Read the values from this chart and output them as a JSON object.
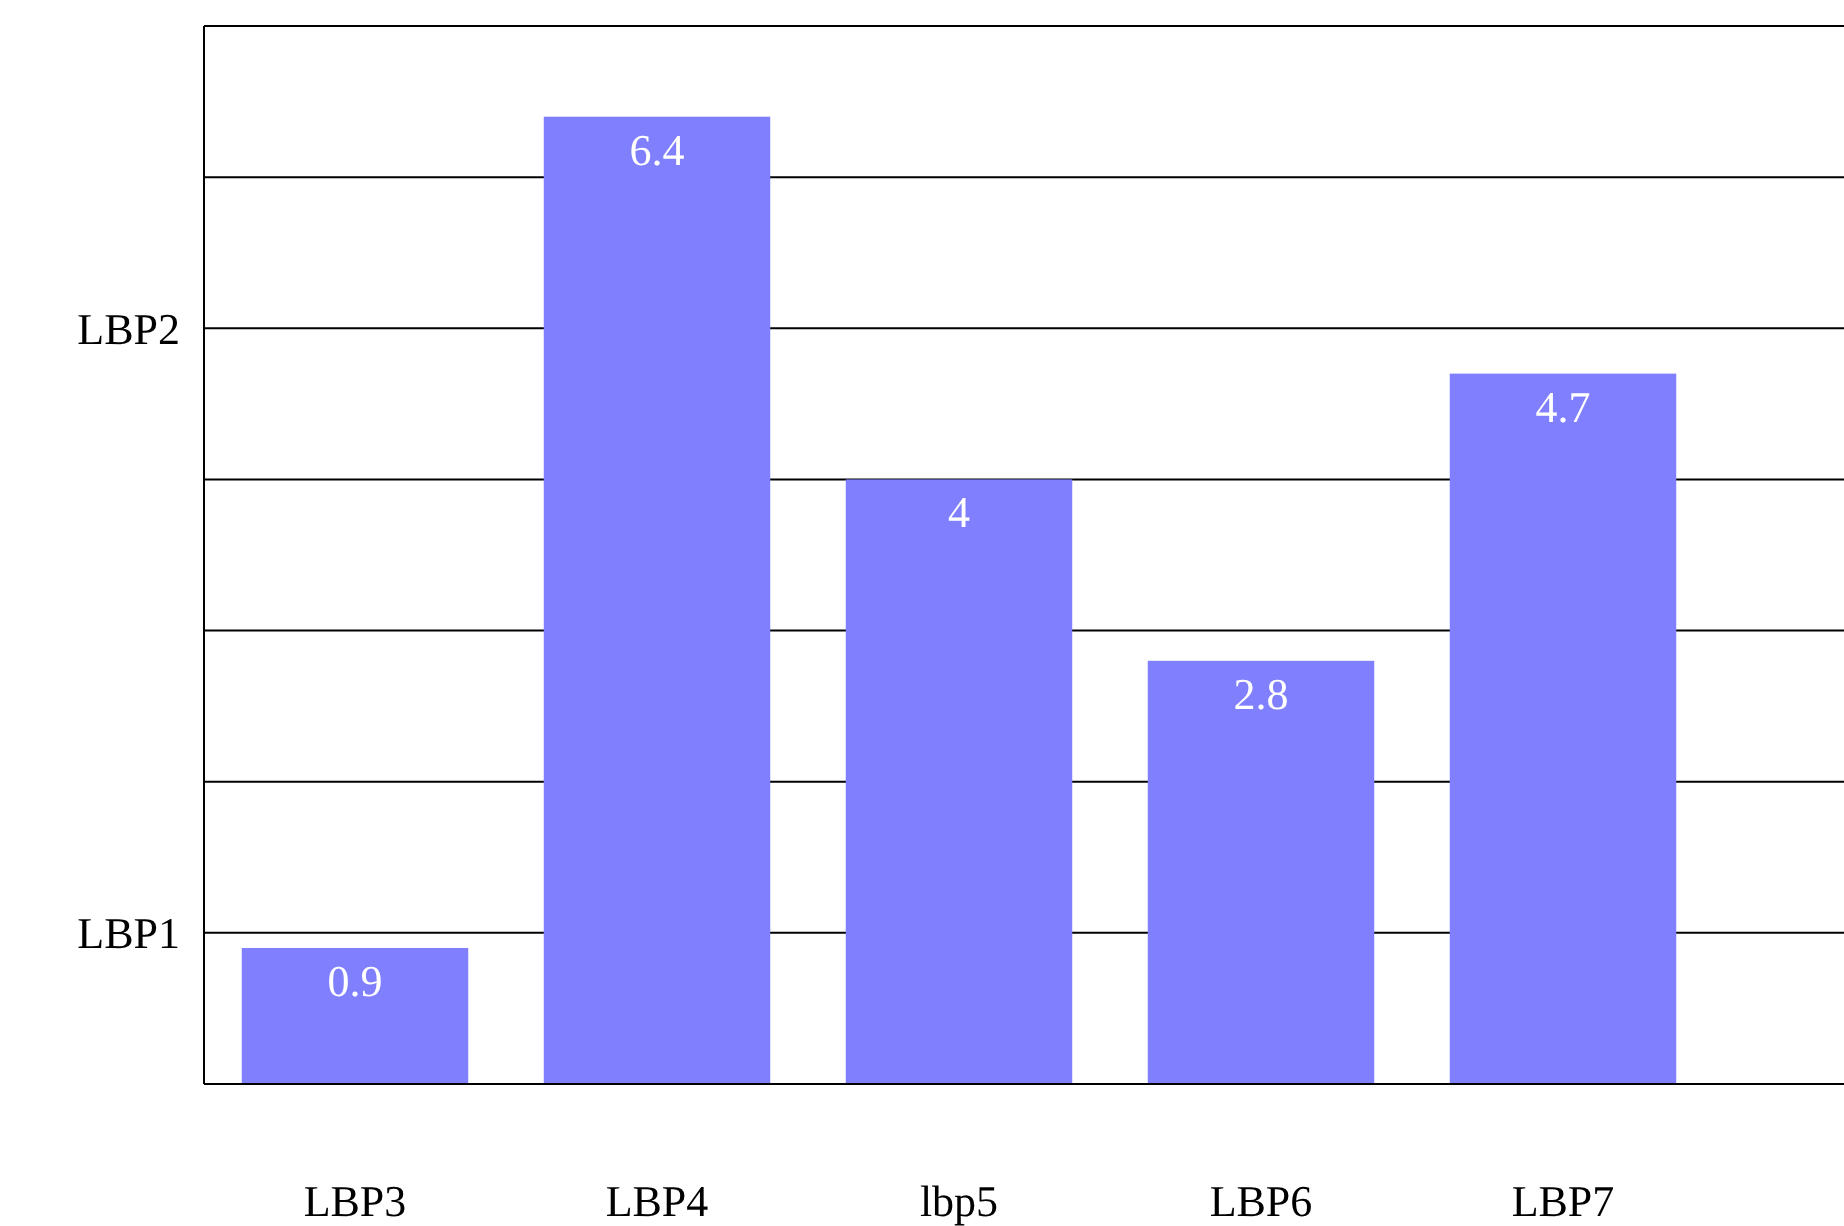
{
  "chart_data": {
    "type": "bar",
    "categories": [
      "LBP3",
      "LBP4",
      "lbp5",
      "LBP6",
      "LBP7"
    ],
    "values": [
      0.9,
      6.4,
      4,
      2.8,
      4.7
    ],
    "color": "#8080ff",
    "ylim": [
      0,
      7
    ],
    "ref_lines": [
      {
        "axis": "y",
        "value": 1,
        "label": "LBP1"
      },
      {
        "axis": "y",
        "value": 2
      },
      {
        "axis": "y",
        "value": 3
      },
      {
        "axis": "y",
        "value": 4
      },
      {
        "axis": "y",
        "value": 5,
        "label": "LBP2"
      },
      {
        "axis": "y",
        "value": 6
      }
    ],
    "data_labels": true
  }
}
